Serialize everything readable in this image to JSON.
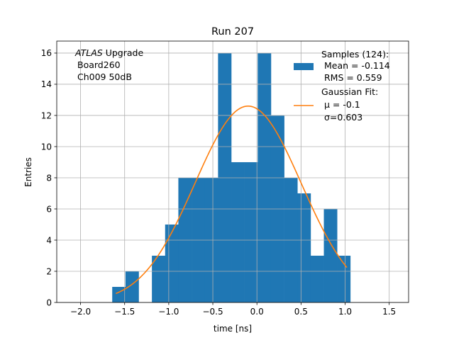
{
  "chart_data": {
    "type": "bar",
    "title": "Run 207",
    "xlabel": "time [ns]",
    "ylabel": "Entries",
    "xlim": [
      -2.27,
      1.72
    ],
    "ylim": [
      0,
      16.77
    ],
    "grid": true,
    "xticks": [
      -2.0,
      -1.5,
      -1.0,
      -0.5,
      0.0,
      0.5,
      1.0,
      1.5
    ],
    "xtick_labels": [
      "−2.0",
      "−1.5",
      "−1.0",
      "−0.5",
      "0.0",
      "0.5",
      "1.0",
      "1.5"
    ],
    "yticks": [
      0,
      2,
      4,
      6,
      8,
      10,
      12,
      14,
      16
    ],
    "ytick_labels": [
      "0",
      "2",
      "4",
      "6",
      "8",
      "10",
      "12",
      "14",
      "16"
    ],
    "histogram": {
      "bin_start": -1.641,
      "bin_width": 0.15,
      "counts": [
        1,
        2,
        0,
        3,
        5,
        8,
        8,
        8,
        16,
        9,
        9,
        16,
        12,
        8,
        7,
        3,
        6,
        3
      ],
      "color": "#1f77b4"
    },
    "fit": {
      "type": "gaussian",
      "mu": -0.1,
      "sigma": 0.603,
      "amplitude": 12.6,
      "x_range": [
        -1.6,
        1.02
      ],
      "color": "#ff7f0e"
    },
    "annotation": {
      "italic": "ATLAS",
      "line1_rest": " Upgrade",
      "line2": "Board260",
      "line3": "Ch009 50dB"
    },
    "legend": {
      "placement": "top-right",
      "entries": [
        {
          "lines": [
            "Samples (124):",
            " Mean = -0.114",
            " RMS = 0.559"
          ],
          "kind": "patch"
        },
        {
          "lines": [
            "Gaussian Fit:",
            "μ = -0.1",
            "σ=0.603"
          ],
          "kind": "line"
        }
      ]
    }
  }
}
